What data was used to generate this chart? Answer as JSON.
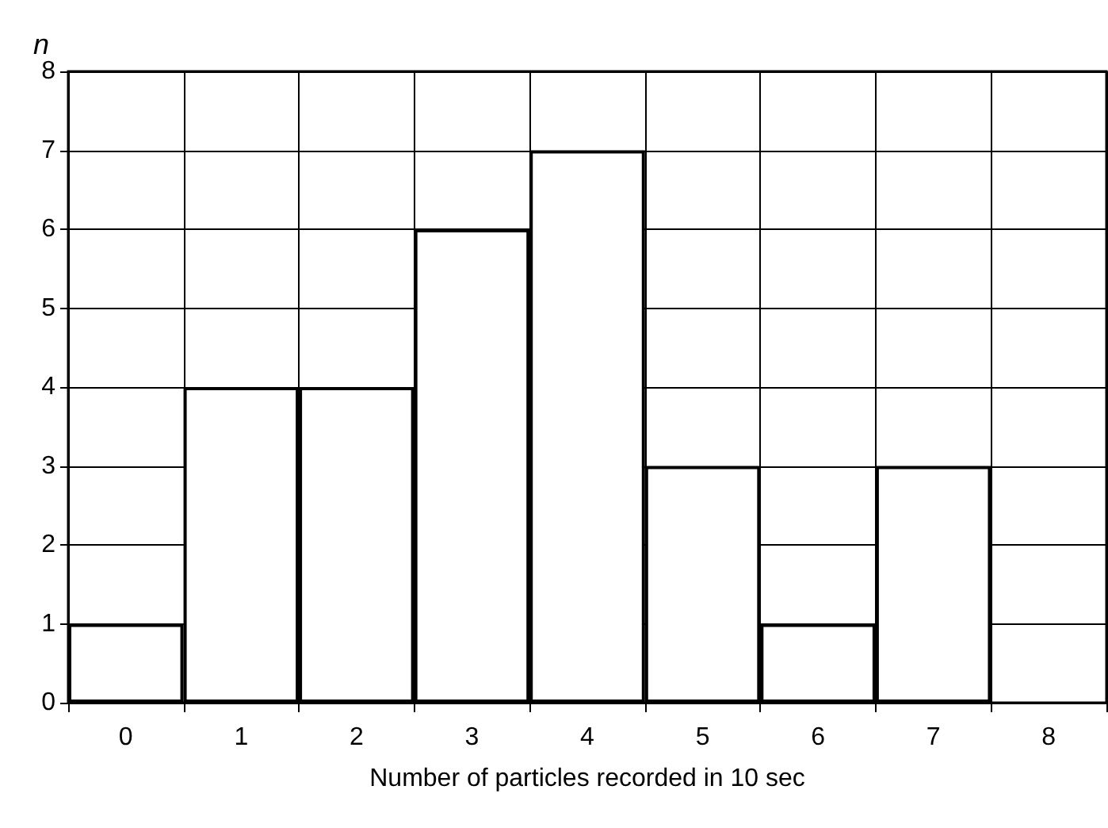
{
  "chart_data": {
    "type": "bar",
    "xlabel": "Number of particles recorded in 10 sec",
    "ylabel": "n",
    "categories": [
      "0",
      "1",
      "2",
      "3",
      "4",
      "5",
      "6",
      "7",
      "8"
    ],
    "values": [
      1,
      4,
      4,
      6,
      7,
      3,
      1,
      3,
      0
    ],
    "color": "#ffffff",
    "ylim": [
      0,
      8
    ],
    "yticks": [
      0,
      1,
      2,
      3,
      4,
      5,
      6,
      7,
      8
    ],
    "grid": true
  }
}
